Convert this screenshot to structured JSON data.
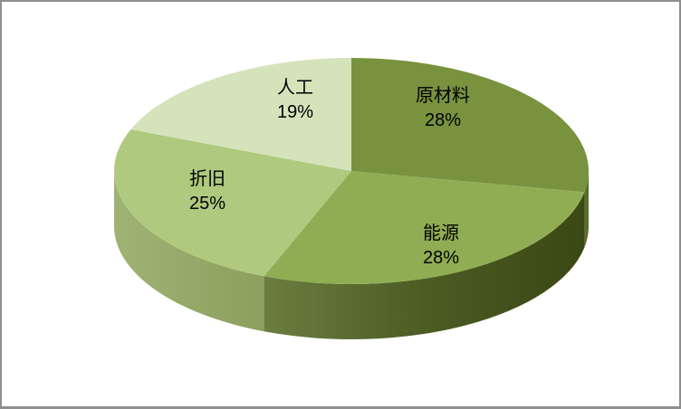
{
  "frame": {
    "background": "#FFFFFF",
    "border_color": "#8E8E8E"
  },
  "chart_data": {
    "type": "pie",
    "style": "3d",
    "title": "",
    "legend": "none",
    "labels_on_chart": true,
    "start_angle_deg": 0,
    "direction": "clockwise",
    "slices": [
      {
        "id": "raw-materials",
        "label": "原材料",
        "value": 28,
        "percent_label": "28%",
        "color": "#78923E",
        "side_gradient": [
          "#5A6C2E"
        ]
      },
      {
        "id": "energy",
        "label": "能源",
        "value": 28,
        "percent_label": "28%",
        "color": "#90AD53",
        "side_gradient": [
          "#6B7E40",
          "#4C5C23",
          "#3A4814"
        ]
      },
      {
        "id": "depreciation",
        "label": "折旧",
        "value": 25,
        "percent_label": "25%",
        "color": "#AFC97E",
        "side_gradient": [
          "#9FB375",
          "#8BA05E"
        ]
      },
      {
        "id": "labor",
        "label": "人工",
        "value": 19,
        "percent_label": "19%",
        "color": "#D5E3BB",
        "side_gradient": [
          "#B9CC90"
        ]
      }
    ]
  }
}
